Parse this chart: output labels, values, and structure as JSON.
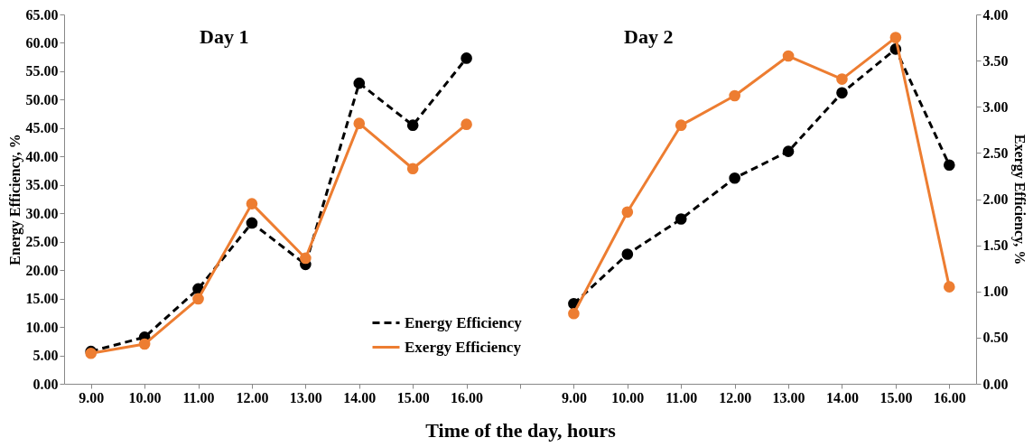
{
  "chart_data": {
    "type": "line",
    "xlabel": "Time of the day, hours",
    "ylabel": "Energy Efficiency, %",
    "y2label": "Exergy Efficiency, %",
    "annotations": [
      "Day 1",
      "Day 2"
    ],
    "categories": [
      "9.00",
      "10.00",
      "11.00",
      "12.00",
      "13.00",
      "14.00",
      "15.00",
      "16.00",
      null,
      "9.00",
      "10.00",
      "11.00",
      "12.00",
      "13.00",
      "14.00",
      "15.00",
      "16.00"
    ],
    "series": [
      {
        "name": "Energy Efficiency",
        "color": "#000000",
        "line_style": "dashed",
        "values": [
          5.7,
          8.2,
          16.7,
          28.3,
          21.0,
          52.9,
          45.5,
          57.3,
          null,
          14.1,
          22.8,
          29.0,
          36.2,
          40.9,
          51.2,
          58.9,
          38.5
        ]
      },
      {
        "name": "Exergy Efficiency",
        "color": "#ed7d31",
        "line_style": "solid",
        "axis": "y2",
        "values": [
          0.33,
          0.43,
          0.92,
          1.95,
          1.36,
          2.82,
          2.33,
          2.81,
          null,
          0.76,
          1.86,
          2.8,
          3.12,
          3.55,
          3.3,
          3.75,
          1.05
        ]
      }
    ],
    "ylim": [
      0,
      65
    ],
    "yticks": [
      {
        "value": 0,
        "label": "0.00"
      },
      {
        "value": 5,
        "label": "5.00"
      },
      {
        "value": 10,
        "label": "10.00"
      },
      {
        "value": 15,
        "label": "15.00"
      },
      {
        "value": 20,
        "label": "20.00"
      },
      {
        "value": 25,
        "label": "25.00"
      },
      {
        "value": 30,
        "label": "30.00"
      },
      {
        "value": 35,
        "label": "35.00"
      },
      {
        "value": 40,
        "label": "40.00"
      },
      {
        "value": 45,
        "label": "45.00"
      },
      {
        "value": 50,
        "label": "50.00"
      },
      {
        "value": 55,
        "label": "55.00"
      },
      {
        "value": 60,
        "label": "60.00"
      },
      {
        "value": 65,
        "label": "65.00"
      }
    ],
    "y2lim": [
      0,
      4
    ],
    "y2ticks": [
      {
        "value": 0,
        "label": "0.00"
      },
      {
        "value": 0.5,
        "label": "0.50"
      },
      {
        "value": 1,
        "label": "1.00"
      },
      {
        "value": 1.5,
        "label": "1.50"
      },
      {
        "value": 2,
        "label": "2.00"
      },
      {
        "value": 2.5,
        "label": "2.50"
      },
      {
        "value": 3,
        "label": "3.00"
      },
      {
        "value": 3.5,
        "label": "3.50"
      },
      {
        "value": 4,
        "label": "4.00"
      }
    ],
    "grid": false,
    "legend": "bottom",
    "marker": "circle"
  }
}
